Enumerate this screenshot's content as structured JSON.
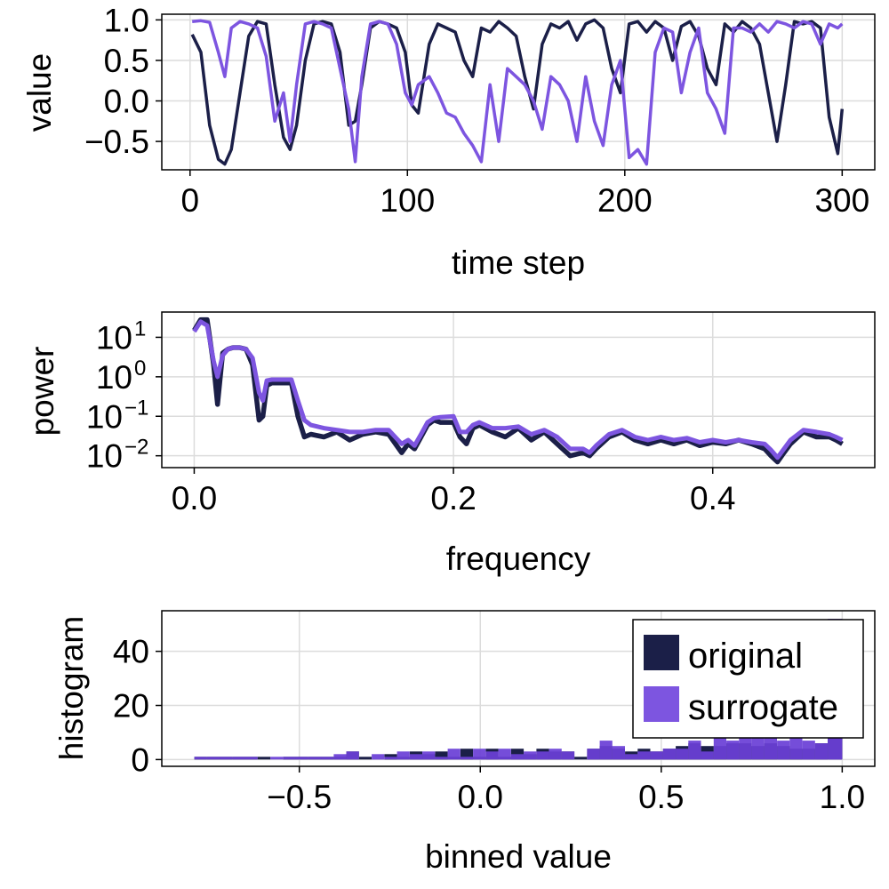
{
  "colors": {
    "original": "#1b1f48",
    "surrogate": "#7d55e0",
    "overlap": "#6a3fd6"
  },
  "chart_data": [
    {
      "type": "line",
      "xlabel": "time step",
      "ylabel": "value",
      "xlim": [
        -13,
        315
      ],
      "ylim": [
        -0.85,
        1.07
      ],
      "xticks": [
        0,
        100,
        200,
        300
      ],
      "xtick_labels": [
        "0",
        "100",
        "200",
        "300"
      ],
      "yticks": [
        1.0,
        0.5,
        0.0,
        -0.5
      ],
      "ytick_labels": [
        "1.0",
        "0.5",
        "0.0",
        "−0.5"
      ],
      "series": [
        {
          "name": "original",
          "x": [
            1,
            5,
            9,
            13,
            16,
            19,
            23,
            27,
            31,
            35,
            39,
            43,
            46,
            49,
            53,
            57,
            61,
            65,
            69,
            73,
            76,
            79,
            83,
            87,
            91,
            95,
            99,
            102,
            105,
            110,
            114,
            118,
            122,
            126,
            130,
            134,
            138,
            142,
            146,
            150,
            154,
            158,
            162,
            166,
            170,
            174,
            178,
            182,
            186,
            190,
            194,
            198,
            202,
            206,
            210,
            214,
            218,
            222,
            226,
            230,
            234,
            238,
            242,
            246,
            250,
            254,
            258,
            262,
            266,
            270,
            274,
            278,
            282,
            286,
            290,
            294,
            298,
            300
          ],
          "y": [
            0.82,
            0.6,
            -0.3,
            -0.72,
            -0.78,
            -0.6,
            0.1,
            0.8,
            0.98,
            0.95,
            0.2,
            -0.45,
            -0.6,
            -0.3,
            0.5,
            0.95,
            0.98,
            0.95,
            0.6,
            -0.3,
            -0.25,
            0.2,
            0.9,
            0.98,
            0.95,
            0.9,
            0.6,
            -0.05,
            -0.15,
            0.7,
            0.95,
            0.9,
            0.85,
            0.5,
            0.3,
            0.9,
            0.85,
            0.98,
            0.9,
            0.8,
            0.3,
            -0.1,
            0.7,
            0.95,
            0.9,
            0.98,
            0.75,
            0.95,
            1.0,
            0.9,
            0.4,
            0.1,
            0.95,
            0.98,
            0.85,
            0.98,
            0.9,
            0.5,
            0.92,
            0.98,
            0.8,
            0.4,
            0.2,
            0.95,
            0.85,
            0.98,
            0.9,
            0.7,
            0.1,
            -0.5,
            0.2,
            0.98,
            0.95,
            0.98,
            0.9,
            -0.2,
            -0.65,
            -0.1
          ]
        },
        {
          "name": "surrogate",
          "x": [
            1,
            5,
            9,
            13,
            16,
            19,
            23,
            27,
            31,
            35,
            39,
            43,
            46,
            49,
            53,
            57,
            61,
            65,
            69,
            73,
            76,
            79,
            83,
            87,
            91,
            95,
            99,
            102,
            105,
            110,
            114,
            118,
            122,
            126,
            130,
            134,
            138,
            142,
            146,
            150,
            154,
            158,
            162,
            166,
            170,
            174,
            178,
            182,
            186,
            190,
            194,
            198,
            202,
            206,
            210,
            214,
            218,
            222,
            226,
            230,
            234,
            238,
            242,
            246,
            250,
            254,
            258,
            262,
            266,
            270,
            274,
            278,
            282,
            286,
            290,
            294,
            298,
            300
          ],
          "y": [
            0.98,
            0.99,
            0.97,
            0.6,
            0.3,
            0.9,
            0.98,
            0.95,
            0.9,
            0.55,
            -0.25,
            0.1,
            -0.5,
            0.2,
            0.95,
            0.98,
            0.95,
            0.9,
            0.4,
            -0.1,
            -0.75,
            0.3,
            0.95,
            0.98,
            0.95,
            0.7,
            0.1,
            -0.05,
            0.2,
            0.3,
            0.1,
            -0.15,
            -0.2,
            -0.4,
            -0.55,
            -0.75,
            0.2,
            -0.5,
            0.4,
            0.3,
            0.2,
            0.0,
            -0.35,
            0.3,
            0.2,
            0.0,
            -0.5,
            0.3,
            -0.25,
            -0.55,
            0.2,
            0.5,
            -0.7,
            -0.6,
            -0.78,
            0.6,
            0.9,
            0.85,
            0.1,
            0.6,
            0.9,
            0.1,
            -0.1,
            -0.4,
            0.9,
            0.9,
            0.85,
            0.95,
            0.85,
            0.98,
            0.95,
            0.9,
            0.98,
            0.95,
            0.7,
            0.95,
            0.9,
            0.95
          ]
        }
      ]
    },
    {
      "type": "line",
      "xlabel": "frequency",
      "ylabel": "power",
      "xscale": "linear",
      "yscale": "log10",
      "xlim": [
        -0.025,
        0.525
      ],
      "ylim": [
        -2.3,
        1.64
      ],
      "xticks": [
        0.0,
        0.2,
        0.4
      ],
      "xtick_labels": [
        "0.0",
        "0.2",
        "0.4"
      ],
      "yticks": [
        10,
        1,
        0.1,
        0.01
      ],
      "ytick_bases": [
        "10",
        "10",
        "10",
        "10"
      ],
      "ytick_exponents": [
        "1",
        "0",
        "−1",
        "−2"
      ],
      "series": [
        {
          "name": "original",
          "x": [
            0.0,
            0.005,
            0.01,
            0.015,
            0.018,
            0.022,
            0.026,
            0.03,
            0.035,
            0.04,
            0.045,
            0.05,
            0.053,
            0.056,
            0.06,
            0.065,
            0.07,
            0.075,
            0.08,
            0.085,
            0.09,
            0.1,
            0.11,
            0.12,
            0.13,
            0.14,
            0.15,
            0.16,
            0.165,
            0.17,
            0.175,
            0.18,
            0.185,
            0.19,
            0.2,
            0.205,
            0.21,
            0.215,
            0.22,
            0.23,
            0.24,
            0.25,
            0.26,
            0.27,
            0.28,
            0.29,
            0.3,
            0.305,
            0.31,
            0.32,
            0.33,
            0.34,
            0.35,
            0.36,
            0.37,
            0.38,
            0.39,
            0.4,
            0.41,
            0.42,
            0.43,
            0.44,
            0.445,
            0.45,
            0.455,
            0.46,
            0.47,
            0.48,
            0.49,
            0.495,
            0.5
          ],
          "y": [
            15,
            28,
            28,
            2,
            0.2,
            4,
            5,
            5.5,
            5.5,
            5,
            2,
            0.08,
            0.1,
            0.6,
            0.7,
            0.7,
            0.7,
            0.7,
            0.1,
            0.03,
            0.035,
            0.03,
            0.04,
            0.025,
            0.035,
            0.04,
            0.035,
            0.012,
            0.02,
            0.015,
            0.03,
            0.06,
            0.08,
            0.07,
            0.07,
            0.03,
            0.02,
            0.05,
            0.06,
            0.04,
            0.03,
            0.05,
            0.025,
            0.04,
            0.02,
            0.01,
            0.012,
            0.01,
            0.015,
            0.03,
            0.04,
            0.025,
            0.02,
            0.025,
            0.02,
            0.025,
            0.018,
            0.022,
            0.02,
            0.025,
            0.02,
            0.015,
            0.01,
            0.007,
            0.012,
            0.02,
            0.04,
            0.03,
            0.03,
            0.025,
            0.02
          ]
        },
        {
          "name": "surrogate",
          "x": [
            0.0,
            0.005,
            0.01,
            0.015,
            0.018,
            0.022,
            0.026,
            0.03,
            0.035,
            0.04,
            0.045,
            0.05,
            0.053,
            0.056,
            0.06,
            0.065,
            0.07,
            0.075,
            0.08,
            0.085,
            0.09,
            0.1,
            0.11,
            0.12,
            0.13,
            0.14,
            0.15,
            0.16,
            0.165,
            0.17,
            0.175,
            0.18,
            0.185,
            0.19,
            0.2,
            0.205,
            0.21,
            0.215,
            0.22,
            0.23,
            0.24,
            0.25,
            0.26,
            0.27,
            0.28,
            0.29,
            0.3,
            0.305,
            0.31,
            0.32,
            0.33,
            0.34,
            0.35,
            0.36,
            0.37,
            0.38,
            0.39,
            0.4,
            0.41,
            0.42,
            0.43,
            0.44,
            0.445,
            0.45,
            0.455,
            0.46,
            0.47,
            0.48,
            0.49,
            0.495,
            0.5
          ],
          "y": [
            14,
            25,
            20,
            2.5,
            1.0,
            3.5,
            5,
            5.5,
            5.5,
            5,
            3,
            0.4,
            0.25,
            0.8,
            0.85,
            0.85,
            0.85,
            0.85,
            0.25,
            0.08,
            0.06,
            0.05,
            0.045,
            0.04,
            0.04,
            0.045,
            0.045,
            0.02,
            0.025,
            0.018,
            0.035,
            0.07,
            0.09,
            0.095,
            0.1,
            0.04,
            0.04,
            0.06,
            0.07,
            0.05,
            0.05,
            0.055,
            0.035,
            0.045,
            0.03,
            0.015,
            0.015,
            0.012,
            0.018,
            0.035,
            0.045,
            0.03,
            0.025,
            0.03,
            0.025,
            0.028,
            0.022,
            0.025,
            0.022,
            0.025,
            0.022,
            0.02,
            0.014,
            0.009,
            0.015,
            0.025,
            0.045,
            0.04,
            0.035,
            0.03,
            0.025
          ]
        }
      ]
    },
    {
      "type": "bar",
      "xlabel": "binned value",
      "ylabel": "histogram",
      "xlim": [
        -0.88,
        1.09
      ],
      "ylim": [
        -2.5,
        55
      ],
      "xticks": [
        -0.5,
        0.0,
        0.5,
        1.0
      ],
      "xtick_labels": [
        "−0.5",
        "0.0",
        "0.5",
        "1.0"
      ],
      "yticks": [
        40,
        20,
        0
      ],
      "ytick_labels": [
        "40",
        "20",
        "0"
      ],
      "bin_edges": [
        -0.79,
        -0.755,
        -0.72,
        -0.685,
        -0.65,
        -0.615,
        -0.58,
        -0.545,
        -0.51,
        -0.475,
        -0.44,
        -0.405,
        -0.37,
        -0.335,
        -0.3,
        -0.265,
        -0.23,
        -0.195,
        -0.16,
        -0.125,
        -0.09,
        -0.055,
        -0.02,
        0.015,
        0.05,
        0.085,
        0.12,
        0.155,
        0.19,
        0.225,
        0.26,
        0.295,
        0.33,
        0.365,
        0.4,
        0.435,
        0.47,
        0.505,
        0.54,
        0.575,
        0.61,
        0.645,
        0.68,
        0.715,
        0.75,
        0.785,
        0.82,
        0.855,
        0.89,
        0.925,
        0.96,
        1.0
      ],
      "series": [
        {
          "name": "original",
          "values": [
            1,
            1,
            1,
            1,
            1,
            1,
            0,
            1,
            1,
            1,
            1,
            1,
            3,
            1,
            0,
            2,
            1,
            3,
            2,
            3,
            1,
            4,
            1,
            4,
            1,
            4,
            2,
            4,
            3,
            3,
            1,
            4,
            5,
            4,
            3,
            4,
            3,
            4,
            5,
            6,
            5,
            5,
            6,
            6,
            5,
            6,
            5,
            4,
            4,
            6,
            8
          ]
        },
        {
          "name": "surrogate",
          "values": [
            1,
            1,
            1,
            1,
            1,
            0,
            1,
            1,
            1,
            1,
            1,
            2,
            3,
            0,
            2,
            1,
            3,
            2,
            3,
            1,
            4,
            1,
            4,
            3,
            4,
            2,
            3,
            3,
            4,
            3,
            0,
            4,
            7,
            5,
            2,
            3,
            3,
            4,
            4,
            7,
            3,
            8,
            7,
            8,
            8,
            8,
            7,
            8,
            7,
            6,
            52
          ]
        }
      ],
      "legend": {
        "entries": [
          "original",
          "surrogate"
        ],
        "position": "top-right"
      }
    }
  ]
}
